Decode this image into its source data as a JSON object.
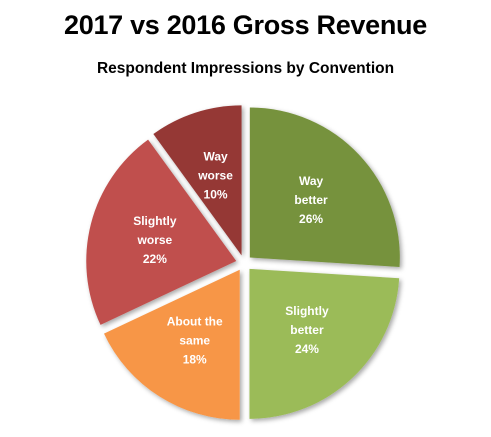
{
  "chart_data": {
    "type": "pie",
    "title": "2017 vs 2016 Gross Revenue",
    "subtitle": "Respondent Impressions by Convention",
    "slices": [
      {
        "label": "Way better",
        "label_lines": [
          "Way",
          "better"
        ],
        "value": 26,
        "value_label": "26%",
        "color": "#76923c"
      },
      {
        "label": "Slightly better",
        "label_lines": [
          "Slightly",
          "better"
        ],
        "value": 24,
        "value_label": "24%",
        "color": "#9bbb59"
      },
      {
        "label": "About the same",
        "label_lines": [
          "About the",
          "same"
        ],
        "value": 18,
        "value_label": "18%",
        "color": "#f79646"
      },
      {
        "label": "Slightly worse",
        "label_lines": [
          "Slightly",
          "worse"
        ],
        "value": 22,
        "value_label": "22%",
        "color": "#c0504d"
      },
      {
        "label": "Way worse",
        "label_lines": [
          "Way",
          "worse"
        ],
        "value": 10,
        "value_label": "10%",
        "color": "#953735"
      }
    ]
  }
}
